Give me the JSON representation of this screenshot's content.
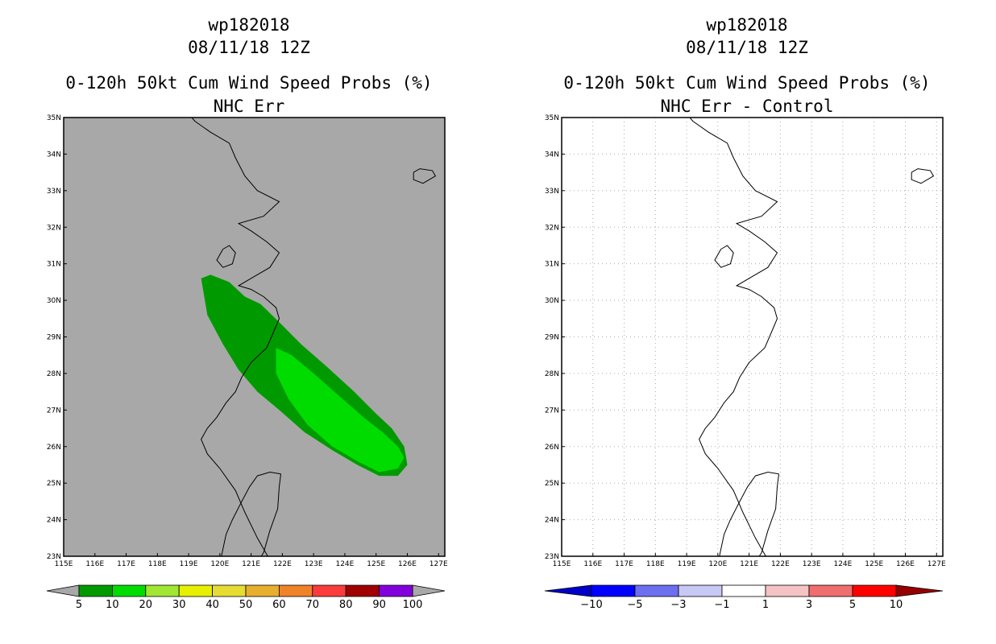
{
  "chart_data": [
    {
      "type": "contour_map",
      "header": [
        "wp182018",
        "08/11/18 12Z"
      ],
      "title": "0-120h 50kt Cum Wind Speed Probs (%)",
      "subtitle": "NHC Err",
      "background": "#a8a8a8",
      "grid": false,
      "xlim": [
        115,
        127.2
      ],
      "ylim": [
        23,
        35
      ],
      "x_tick_labels": [
        "115E",
        "116E",
        "117E",
        "118E",
        "119E",
        "120E",
        "121E",
        "122E",
        "123E",
        "124E",
        "125E",
        "126E",
        "127E"
      ],
      "y_tick_labels": [
        "23N",
        "24N",
        "25N",
        "26N",
        "27N",
        "28N",
        "29N",
        "30N",
        "31N",
        "32N",
        "33N",
        "34N",
        "35N"
      ],
      "colorbar": {
        "labels": [
          "5",
          "10",
          "20",
          "30",
          "40",
          "50",
          "60",
          "70",
          "80",
          "90",
          "100"
        ],
        "colors": [
          "#009a00",
          "#00dc00",
          "#a0e632",
          "#e6f000",
          "#e6dc32",
          "#e6af2d",
          "#f08228",
          "#fa3c3c",
          "#a00000",
          "#8200dc"
        ]
      },
      "regions": [
        {
          "level": "5-10",
          "color": "#009a00",
          "lon": [
            119.4,
            119.7,
            120.3,
            120.8,
            121.3,
            121.9,
            122.6,
            123.4,
            124.3,
            125.0,
            125.5,
            125.9,
            126.0,
            125.7,
            125.1,
            124.4,
            123.6,
            122.7,
            121.9,
            121.2,
            120.6,
            120.1,
            119.6,
            119.4
          ],
          "lat": [
            30.6,
            30.7,
            30.5,
            30.1,
            29.9,
            29.4,
            28.8,
            28.2,
            27.5,
            26.9,
            26.5,
            26.0,
            25.5,
            25.2,
            25.2,
            25.5,
            25.9,
            26.4,
            27.0,
            27.5,
            28.1,
            28.8,
            29.6,
            30.6
          ]
        },
        {
          "level": "10-20",
          "color": "#00dc00",
          "lon": [
            121.8,
            122.3,
            123.0,
            123.8,
            124.6,
            125.2,
            125.7,
            125.9,
            125.7,
            125.1,
            124.4,
            123.6,
            122.8,
            122.2,
            121.8,
            121.8
          ],
          "lat": [
            28.7,
            28.5,
            28.0,
            27.4,
            26.8,
            26.4,
            26.0,
            25.7,
            25.4,
            25.3,
            25.6,
            26.0,
            26.6,
            27.3,
            28.0,
            28.7
          ]
        }
      ]
    },
    {
      "type": "contour_map",
      "header": [
        "wp182018",
        "08/11/18 12Z"
      ],
      "title": "0-120h 50kt Cum Wind Speed Probs (%)",
      "subtitle": "NHC Err - Control",
      "background": "#ffffff",
      "grid": true,
      "xlim": [
        115,
        127.2
      ],
      "ylim": [
        23,
        35
      ],
      "x_tick_labels": [
        "115E",
        "116E",
        "117E",
        "118E",
        "119E",
        "120E",
        "121E",
        "122E",
        "123E",
        "124E",
        "125E",
        "126E",
        "127E"
      ],
      "y_tick_labels": [
        "23N",
        "24N",
        "25N",
        "26N",
        "27N",
        "28N",
        "29N",
        "30N",
        "31N",
        "32N",
        "33N",
        "34N",
        "35N"
      ],
      "colorbar": {
        "labels": [
          "-10",
          "-5",
          "-3",
          "-1",
          "1",
          "3",
          "5",
          "10"
        ],
        "colors": [
          "#0000c8",
          "#0000ff",
          "#6e6ef0",
          "#c8c8f5",
          "#ffffff",
          "#f5c3c3",
          "#f06e6e",
          "#ff0000",
          "#960000"
        ]
      },
      "regions": []
    }
  ]
}
